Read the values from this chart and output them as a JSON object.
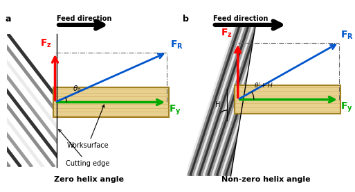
{
  "bg_color": "#ffffff",
  "panel_a": {
    "label": "a",
    "title": "Zero helix angle",
    "feed_text": "Feed direction",
    "worksurface_color": "#e8d090",
    "worksurface_edge_color": "#a08020",
    "arrow_fz_color": "#ff0000",
    "arrow_fy_color": "#00aa00",
    "arrow_fr_color": "#0055cc",
    "worksurface_label": "Worksurface",
    "cutting_edge_label": "Cutting edge",
    "angle_label": "$\\theta_0$",
    "tool_stripe_colors": [
      0.95,
      0.75,
      0.55,
      0.35,
      0.15,
      0.35,
      0.55,
      0.75,
      0.9,
      0.7,
      0.45,
      0.25,
      0.15,
      0.3,
      0.55,
      0.75,
      0.9
    ]
  },
  "panel_b": {
    "label": "b",
    "title": "Non-zero helix angle",
    "feed_text": "Feed direction",
    "worksurface_color": "#e8d090",
    "worksurface_edge_color": "#a08020",
    "arrow_fz_color": "#ff0000",
    "arrow_fy_color": "#00aa00",
    "arrow_fr_color": "#0055cc",
    "angle_label": "$\\theta'+H$",
    "H_label": "H"
  },
  "dashdot_color": "#666666"
}
